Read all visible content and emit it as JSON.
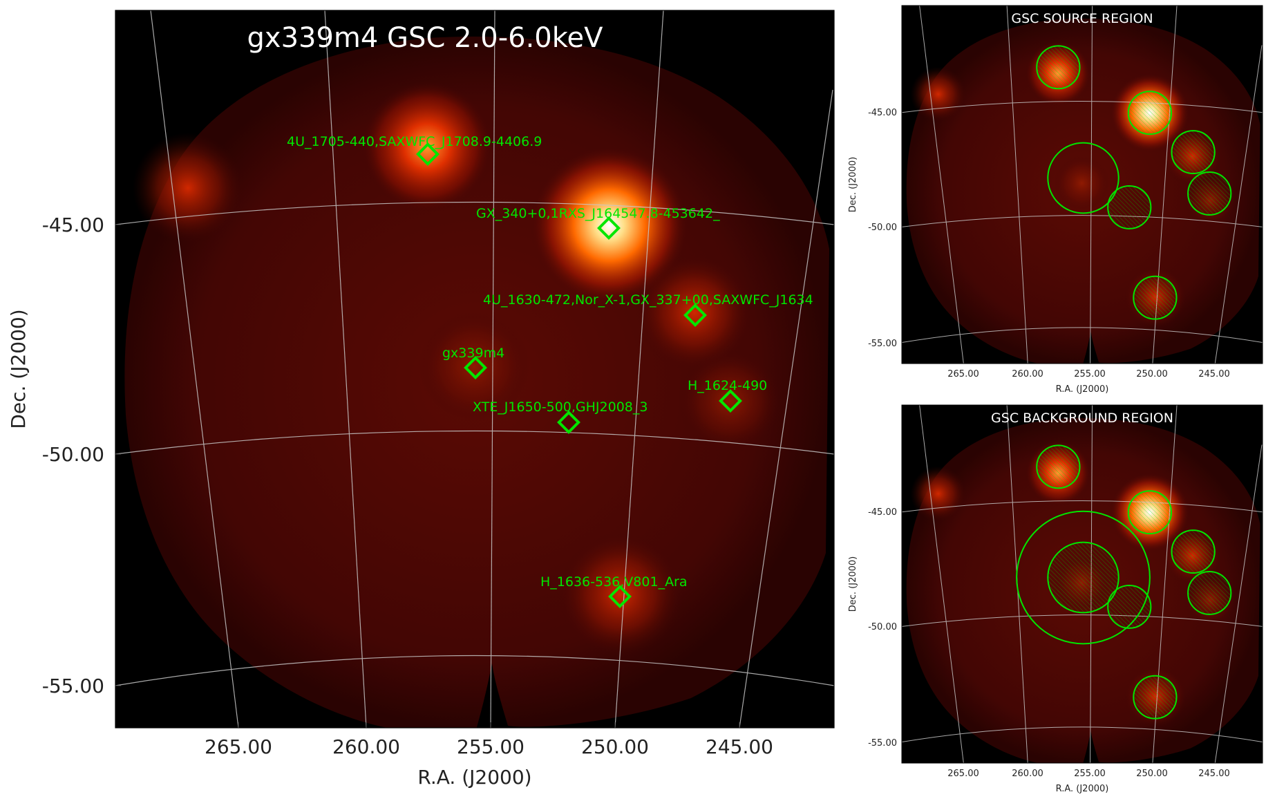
{
  "colors": {
    "sky_dark": "#3d0403",
    "background": "#000000",
    "grid": "#c8c8c8",
    "marker": "#00e600"
  },
  "main_panel": {
    "title": "gx339m4 GSC 2.0-6.0keV",
    "xlabel": "R.A. (J2000)",
    "ylabel": "Dec. (J2000)",
    "xticks": [
      "265.00",
      "260.00",
      "255.00",
      "250.00",
      "245.00"
    ],
    "yticks": [
      "-45.00",
      "-50.00",
      "-55.00"
    ],
    "sources": [
      {
        "label": "4U_1705-440,SAXWFC_J1708.9-4406.9"
      },
      {
        "label": "GX_340+0,1RXS_J164547.8-453642_"
      },
      {
        "label": "4U_1630-472,Nor_X-1,GX_337+00,SAXWFC_J1634"
      },
      {
        "label": "gx339m4"
      },
      {
        "label": "H_1624-490"
      },
      {
        "label": "XTE_J1650-500,GHJ2008_3"
      },
      {
        "label": "H_1636-536,V801_Ara"
      }
    ]
  },
  "source_panel": {
    "title": "GSC SOURCE REGION",
    "xlabel": "R.A. (J2000)",
    "ylabel": "Dec. (J2000)",
    "xticks": [
      "265.00",
      "260.00",
      "255.00",
      "250.00",
      "245.00"
    ],
    "yticks": [
      "-45.00",
      "-50.00",
      "-55.00"
    ]
  },
  "background_panel": {
    "title": "GSC BACKGROUND REGION",
    "xlabel": "R.A. (J2000)",
    "ylabel": "Dec. (J2000)",
    "xticks": [
      "265.00",
      "260.00",
      "255.00",
      "250.00",
      "245.00"
    ],
    "yticks": [
      "-45.00",
      "-50.00",
      "-55.00"
    ]
  }
}
